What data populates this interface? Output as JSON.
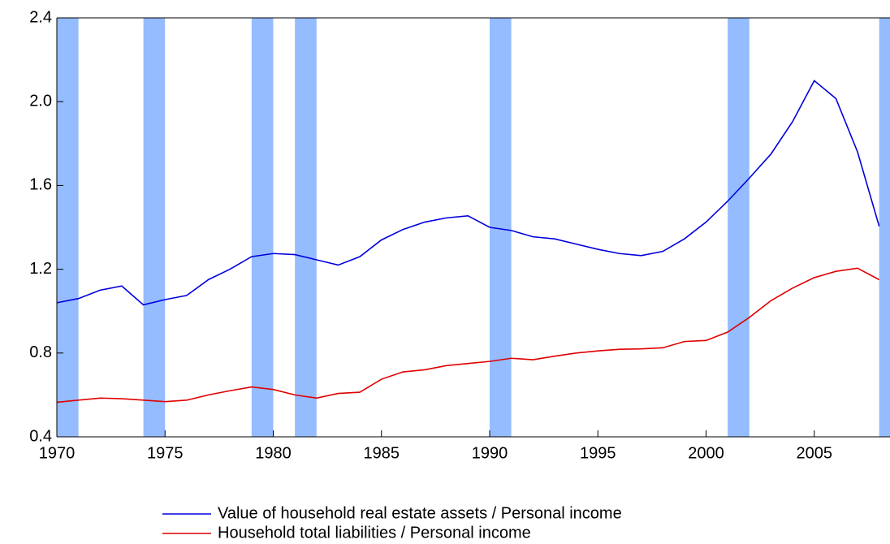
{
  "chart_data": {
    "type": "line",
    "x": [
      1970,
      1971,
      1972,
      1973,
      1974,
      1975,
      1976,
      1977,
      1978,
      1979,
      1980,
      1981,
      1982,
      1983,
      1984,
      1985,
      1986,
      1987,
      1988,
      1989,
      1990,
      1991,
      1992,
      1993,
      1994,
      1995,
      1996,
      1997,
      1998,
      1999,
      2000,
      2001,
      2002,
      2003,
      2004,
      2005,
      2006,
      2007,
      2008
    ],
    "series": [
      {
        "name": "Value of household real estate assets / Personal income",
        "color": "#0000dd",
        "values": [
          1.04,
          1.06,
          1.1,
          1.12,
          1.03,
          1.055,
          1.075,
          1.15,
          1.2,
          1.26,
          1.275,
          1.27,
          1.245,
          1.22,
          1.26,
          1.34,
          1.39,
          1.425,
          1.445,
          1.455,
          1.4,
          1.385,
          1.355,
          1.345,
          1.32,
          1.295,
          1.275,
          1.265,
          1.285,
          1.345,
          1.425,
          1.525,
          1.635,
          1.75,
          1.905,
          2.1,
          2.015,
          1.76,
          1.405
        ]
      },
      {
        "name": "Household total liabilities / Personal income",
        "color": "#e00000",
        "values": [
          0.565,
          0.575,
          0.585,
          0.582,
          0.575,
          0.568,
          0.575,
          0.6,
          0.62,
          0.638,
          0.626,
          0.6,
          0.585,
          0.607,
          0.613,
          0.675,
          0.71,
          0.72,
          0.74,
          0.75,
          0.76,
          0.775,
          0.768,
          0.785,
          0.8,
          0.81,
          0.818,
          0.82,
          0.825,
          0.855,
          0.86,
          0.9,
          0.97,
          1.05,
          1.11,
          1.16,
          1.19,
          1.205,
          1.15
        ]
      }
    ],
    "shaded_periods": [
      [
        1970,
        1971
      ],
      [
        1974,
        1975
      ],
      [
        1979,
        1980
      ],
      [
        1981,
        1982
      ],
      [
        1990,
        1991
      ],
      [
        2001,
        2002
      ],
      [
        2008,
        2009
      ]
    ],
    "shade_color": "#94bcff",
    "xlim": [
      1970,
      2008.5
    ],
    "xticks": [
      1970,
      1975,
      1980,
      1985,
      1990,
      1995,
      2000,
      2005
    ],
    "ylim": [
      0.4,
      2.4
    ],
    "yticks": [
      0.4,
      0.8,
      1.2,
      1.6,
      {
        "value": 2,
        "label": "2.0"
      },
      2.4
    ]
  }
}
